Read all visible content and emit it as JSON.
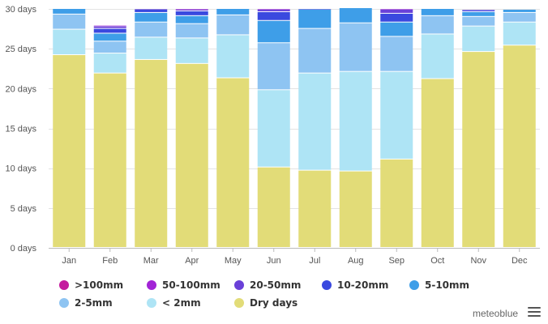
{
  "chart_data": {
    "type": "bar",
    "stacked": true,
    "categories": [
      "Jan",
      "Feb",
      "Mar",
      "Apr",
      "May",
      "Jun",
      "Jul",
      "Aug",
      "Sep",
      "Oct",
      "Nov",
      "Dec"
    ],
    "ylim": [
      0,
      30
    ],
    "y_ticks": [
      "0 days",
      "5 days",
      "10 days",
      "15 days",
      "20 days",
      "25 days",
      "30 days"
    ],
    "y_tick_values": [
      0,
      5,
      10,
      15,
      20,
      25,
      30
    ],
    "grid": true,
    "legend_position": "bottom",
    "series": [
      {
        "name": "Dry days",
        "color": "#e2dc78",
        "values": [
          24.2,
          21.9,
          23.6,
          23.1,
          21.3,
          10.1,
          9.7,
          9.6,
          11.1,
          21.2,
          24.6,
          25.4
        ]
      },
      {
        "name": "< 2mm",
        "color": "#aee4f5",
        "values": [
          3.2,
          2.5,
          2.8,
          3.2,
          5.4,
          9.7,
          12.2,
          12.5,
          11.0,
          5.6,
          3.2,
          2.9
        ]
      },
      {
        "name": "2-5mm",
        "color": "#8ec4f2",
        "values": [
          1.9,
          1.5,
          1.9,
          1.8,
          2.5,
          5.9,
          5.6,
          6.1,
          4.4,
          2.3,
          1.2,
          1.2
        ]
      },
      {
        "name": "5-10mm",
        "color": "#3e9ee8",
        "values": [
          0.7,
          1.0,
          1.2,
          1.0,
          0.8,
          2.8,
          2.4,
          1.9,
          1.8,
          0.9,
          0.6,
          0.4
        ]
      },
      {
        "name": "10-20mm",
        "color": "#3a49df",
        "values": [
          0.0,
          0.6,
          0.4,
          0.6,
          0.0,
          1.1,
          0.1,
          0.0,
          1.1,
          0.0,
          0.2,
          0.0
        ]
      },
      {
        "name": "20-50mm",
        "color": "#6a40d8",
        "values": [
          0.0,
          0.3,
          0.1,
          0.2,
          0.0,
          0.3,
          0.0,
          0.0,
          0.5,
          0.0,
          0.1,
          0.0
        ]
      },
      {
        "name": "50-100mm",
        "color": "#a224d6",
        "values": [
          0.0,
          0.1,
          0.0,
          0.1,
          0.0,
          0.1,
          0.0,
          0.0,
          0.1,
          0.0,
          0.0,
          0.0
        ]
      },
      {
        "name": ">100mm",
        "color": "#c41a9e",
        "values": [
          0.0,
          0.0,
          0.0,
          0.0,
          0.0,
          0.0,
          0.0,
          0.0,
          0.0,
          0.0,
          0.0,
          0.0
        ]
      }
    ]
  },
  "legend": [
    {
      "label": ">100mm",
      "color": "#c41a9e"
    },
    {
      "label": "50-100mm",
      "color": "#a224d6"
    },
    {
      "label": "20-50mm",
      "color": "#6a40d8"
    },
    {
      "label": "10-20mm",
      "color": "#3a49df"
    },
    {
      "label": "5-10mm",
      "color": "#3e9ee8"
    },
    {
      "label": "2-5mm",
      "color": "#8ec4f2"
    },
    {
      "label": "< 2mm",
      "color": "#aee4f5"
    },
    {
      "label": "Dry days",
      "color": "#e2dc78"
    }
  ],
  "credit": "meteoblue",
  "menu_icon": "hamburger-menu-icon"
}
